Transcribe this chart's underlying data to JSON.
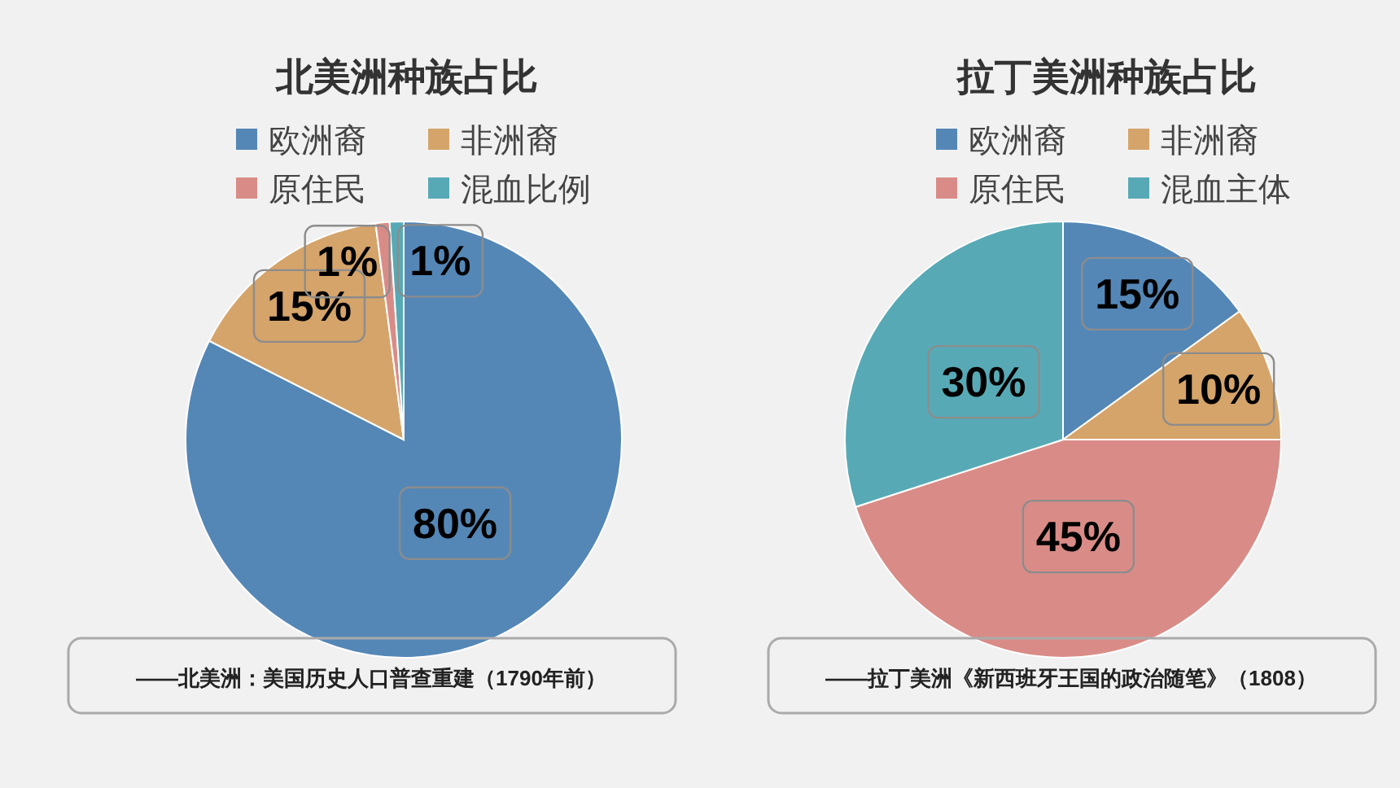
{
  "chart_data": [
    {
      "type": "pie",
      "title": "北美洲种族占比",
      "categories": [
        "欧洲裔",
        "非洲裔",
        "原住民",
        "混血比例"
      ],
      "values": [
        80,
        15,
        1,
        1
      ],
      "value_labels": [
        "80%",
        "15%",
        "1%",
        "1%"
      ],
      "colors": [
        "#5487b6",
        "#d5a46a",
        "#d98c87",
        "#57aab5"
      ],
      "legend": "top",
      "annotations": [
        "——北美洲：美国历史人口普查重建（1790年前）"
      ]
    },
    {
      "type": "pie",
      "title": "拉丁美洲种族占比",
      "categories": [
        "欧洲裔",
        "非洲裔",
        "原住民",
        "混血主体"
      ],
      "values": [
        15,
        10,
        45,
        30
      ],
      "value_labels": [
        "15%",
        "10%",
        "45%",
        "30%"
      ],
      "colors": [
        "#5487b6",
        "#d5a46a",
        "#d98c87",
        "#57aab5"
      ],
      "legend": "top",
      "annotations": [
        "——拉丁美洲《新西班牙王国的政治随笔》（1808）"
      ]
    }
  ]
}
